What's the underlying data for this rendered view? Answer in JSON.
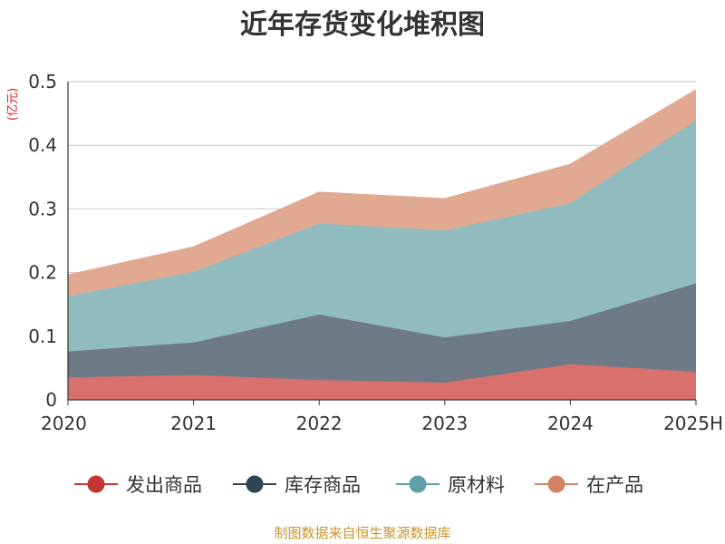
{
  "chart_data": {
    "type": "area",
    "stacked": true,
    "title": "近年存货变化堆积图",
    "ylabel": "(亿元)",
    "categories": [
      "2020",
      "2021",
      "2022",
      "2023",
      "2024",
      "2025H"
    ],
    "ylim": [
      0,
      0.5
    ],
    "yticks": [
      "0",
      "0.1",
      "0.2",
      "0.3",
      "0.4",
      "0.5"
    ],
    "grid": true,
    "legend_position": "bottom",
    "series": [
      {
        "name": "发出商品",
        "values": [
          0.035,
          0.039,
          0.031,
          0.027,
          0.056,
          0.044
        ],
        "color": "#c23531",
        "fill": "#d8716e"
      },
      {
        "name": "库存商品",
        "values": [
          0.041,
          0.051,
          0.103,
          0.071,
          0.068,
          0.139
        ],
        "color": "#2f4554",
        "fill": "#6e7b86"
      },
      {
        "name": "原材料",
        "values": [
          0.087,
          0.111,
          0.143,
          0.168,
          0.185,
          0.256
        ],
        "color": "#61a0a8",
        "fill": "#90bbbf"
      },
      {
        "name": "在产品",
        "values": [
          0.033,
          0.039,
          0.049,
          0.05,
          0.061,
          0.048
        ],
        "color": "#d48265",
        "fill": "#e1a992"
      }
    ]
  },
  "source": "制图数据来自恒生聚源数据库"
}
